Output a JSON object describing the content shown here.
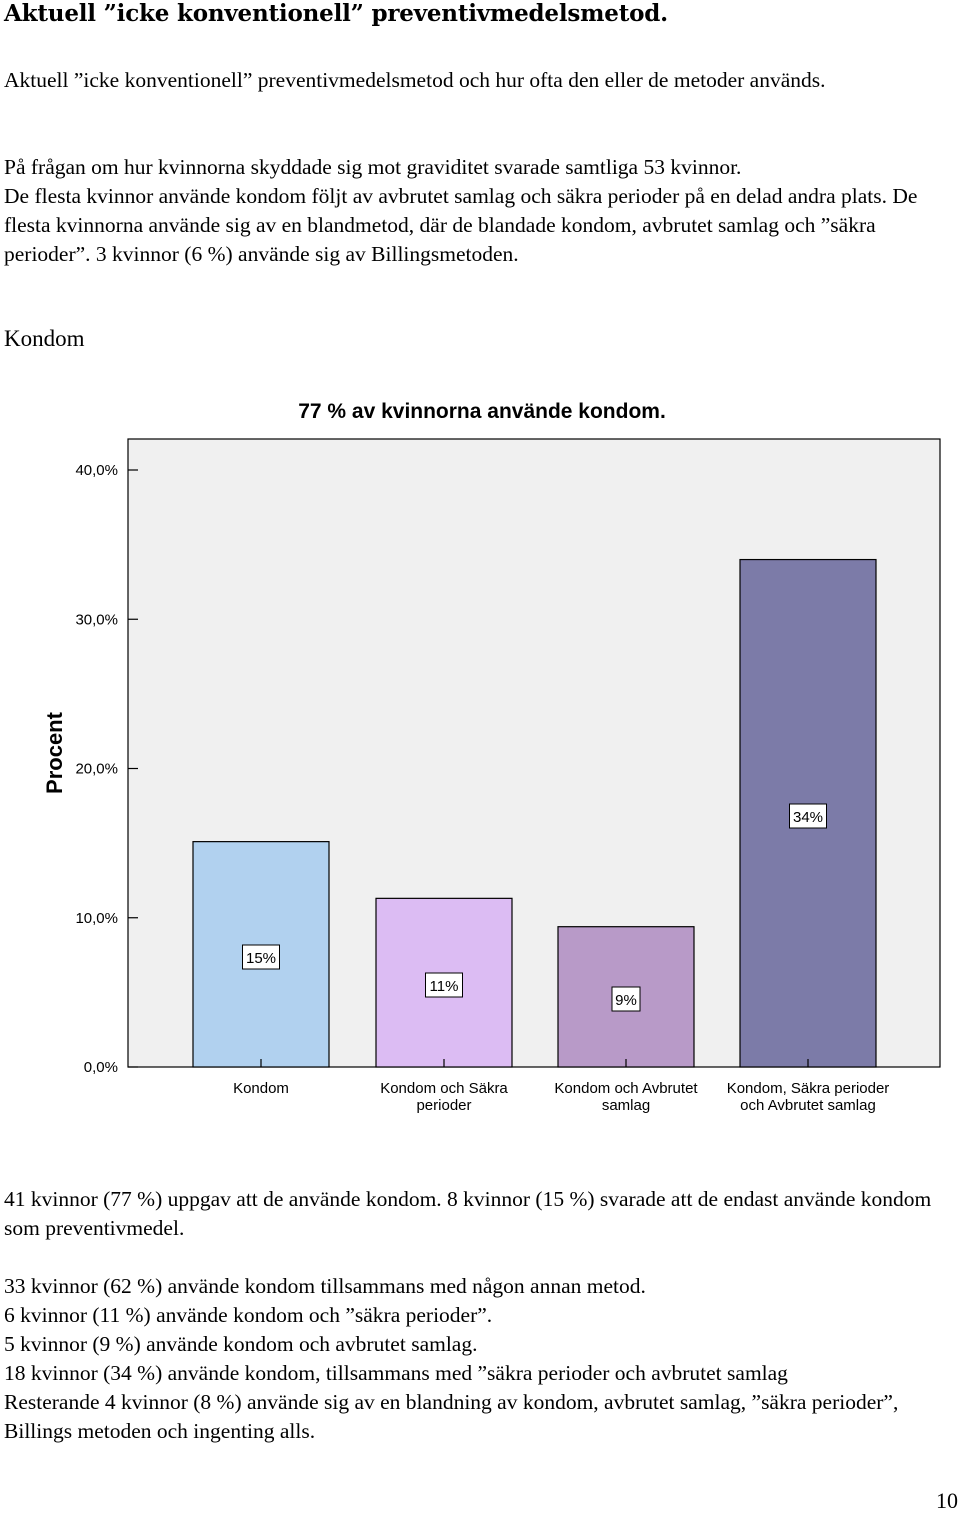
{
  "document": {
    "heading": "Aktuell ”icke konventionell” preventivmedelsmetod.",
    "intro": "Aktuell ”icke konventionell” preventivmedelsmetod och hur ofta den eller de metoder används.",
    "para1_line1": "På frågan om hur kvinnorna skyddade sig mot graviditet svarade samtliga 53 kvinnor.",
    "para1_line2": "De flesta kvinnor använde kondom följt av avbrutet samlag och säkra perioder på en delad andra plats. De flesta kvinnorna använde sig av en blandmetod, där de blandade kondom, avbrutet samlag och ”säkra perioder”. 3 kvinnor (6 %) använde sig av Billingsmetoden.",
    "subheading": "Kondom",
    "after_chart_1": "41 kvinnor (77 %) uppgav att de använde kondom. 8 kvinnor (15 %) svarade att de endast använde kondom som preventivmedel.",
    "after_chart_2": "33 kvinnor (62 %) använde kondom tillsammans med någon annan metod.",
    "after_chart_3": "6 kvinnor (11 %) använde kondom och ”säkra perioder”.",
    "after_chart_4": "5 kvinnor (9 %) använde kondom och avbrutet samlag.",
    "after_chart_5": "18 kvinnor (34 %) använde kondom, tillsammans med ”säkra perioder och avbrutet samlag",
    "after_chart_6": "Resterande 4 kvinnor (8 %) använde sig av en blandning av kondom, avbrutet samlag, ”säkra perioder”, Billings metoden och ingenting alls.",
    "page_number": "10"
  },
  "chart_data": {
    "type": "bar",
    "title": "77 % av kvinnorna använde kondom.",
    "ylabel": "Procent",
    "xlabel": "",
    "ylim": [
      0,
      40
    ],
    "yticks": [
      "0,0%",
      "10,0%",
      "20,0%",
      "30,0%",
      "40,0%"
    ],
    "categories": [
      [
        "Kondom"
      ],
      [
        "Kondom och Säkra",
        "perioder"
      ],
      [
        "Kondom och Avbrutet",
        "samlag"
      ],
      [
        "Kondom, Säkra perioder",
        "och Avbrutet samlag"
      ]
    ],
    "values": [
      15.1,
      11.3,
      9.4,
      34
    ],
    "data_labels": [
      "15%",
      "11%",
      "9%",
      "34%"
    ],
    "colors": [
      "#b1d1ef",
      "#dcbcf3",
      "#b89ac8",
      "#7c7ba8"
    ],
    "background": "#f0f0f0",
    "grid": false,
    "legend": "none"
  }
}
